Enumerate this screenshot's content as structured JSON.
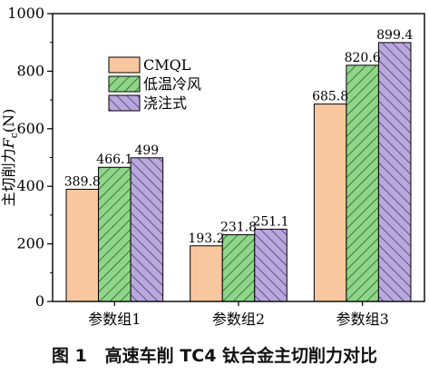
{
  "caption": {
    "label": "图 1",
    "text": "高速车削 TC4 钛合金主切削力对比"
  },
  "chart_data": {
    "type": "bar",
    "categories": [
      "参数组1",
      "参数组2",
      "参数组3"
    ],
    "series": [
      {
        "name": "CMQL",
        "values": [
          389.8,
          193.2,
          685.8
        ],
        "value_labels": [
          "389.8",
          "193.2",
          "685.8"
        ],
        "color": "#f9c79f",
        "pattern": "none"
      },
      {
        "name": "低温冷风",
        "values": [
          466.1,
          231.8,
          820.6
        ],
        "value_labels": [
          "466.1",
          "231.8",
          "820.6"
        ],
        "color": "#8fd68a",
        "pattern": "hatch"
      },
      {
        "name": "浇注式",
        "values": [
          499,
          251.1,
          899.4
        ],
        "value_labels": [
          "499",
          "251.1",
          "899.4"
        ],
        "color": "#b9a8dc",
        "pattern": "hatch"
      }
    ],
    "ylabel_main": "主切削力",
    "ylabel_symbol": "F",
    "ylabel_subscript": "c",
    "ylabel_unit": "(N)",
    "ylim": [
      0,
      1000
    ],
    "yticks": [
      0,
      200,
      400,
      600,
      800,
      1000
    ],
    "grid": false,
    "legend_position": "top-left"
  }
}
